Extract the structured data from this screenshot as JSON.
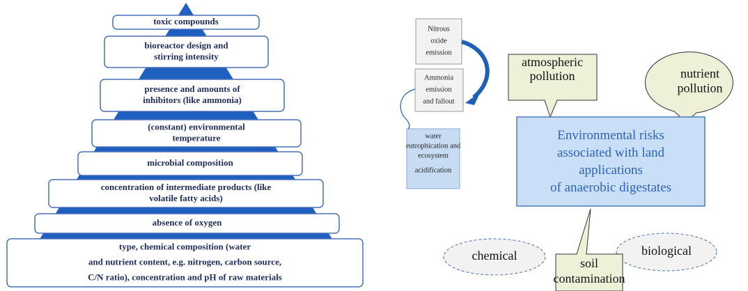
{
  "pyramid": {
    "levels": [
      [
        "toxic compounds"
      ],
      [
        "bioreactor design and",
        "stirring intensity"
      ],
      [
        "presence and amounts of",
        "inhibitors (like ammonia)"
      ],
      [
        "(constant) environmental",
        "temperature"
      ],
      [
        "microbial composition"
      ],
      [
        "concentration of intermediate products (like",
        "volatile fatty acids)"
      ],
      [
        "absence of oxygen"
      ],
      [
        "type, chemical composition (water",
        "and nutrient content, e.g. nitrogen, carbon source,",
        "C/N ratio), concentration and pH of raw materials"
      ]
    ]
  },
  "nodes": {
    "nitrous": [
      "Nitrous",
      "oxide",
      "emission"
    ],
    "ammonia": [
      "Ammonia",
      "emission",
      "and fallout"
    ],
    "water": [
      "water",
      "eutrophication and",
      "ecosystem",
      "acidification"
    ],
    "atmospheric": [
      "atmospheric",
      "pollution"
    ],
    "nutrient": [
      "nutrient",
      "pollution"
    ],
    "center": [
      "Environmental risks",
      "associated with land",
      "applications",
      "of anaerobic digestates"
    ],
    "soil": [
      "soil",
      "contamination"
    ],
    "chemical": "chemical",
    "biological": "biological"
  }
}
